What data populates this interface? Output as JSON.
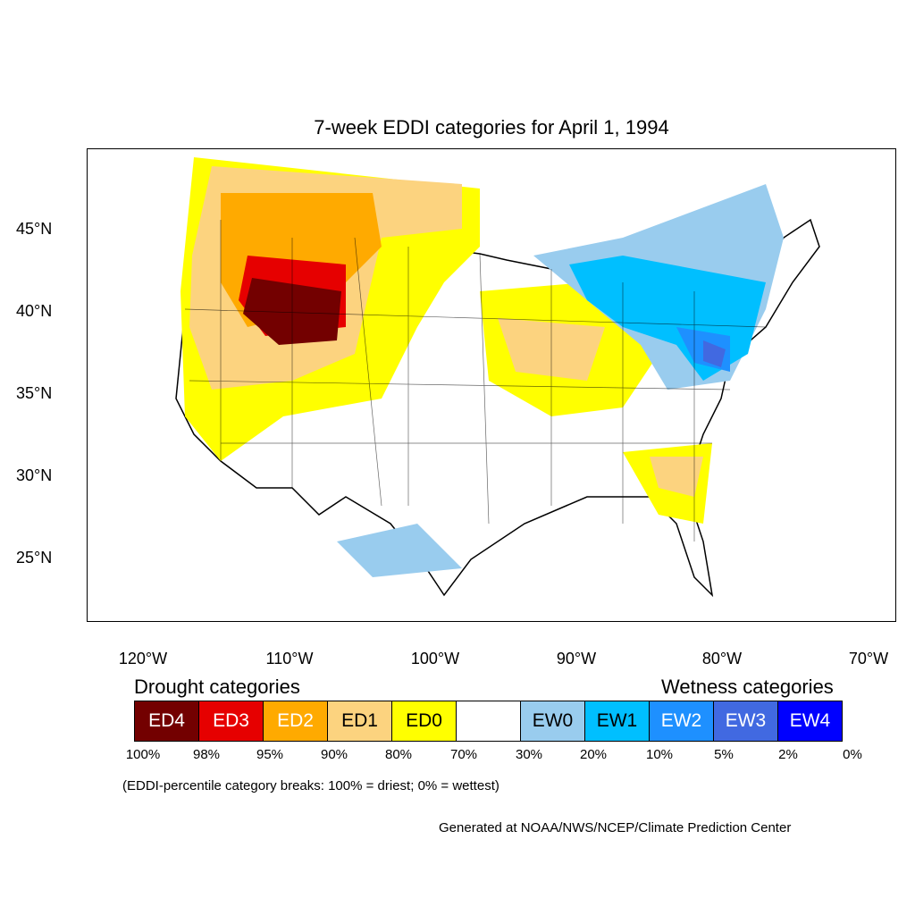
{
  "title": "7-week EDDI categories for April 1, 1994",
  "map": {
    "lat_labels": [
      "45°N",
      "40°N",
      "35°N",
      "30°N",
      "25°N"
    ],
    "lon_labels": [
      "120°W",
      "110°W",
      "100°W",
      "90°W",
      "80°W",
      "70°W"
    ]
  },
  "legend": {
    "drought_heading": "Drought categories",
    "wetness_heading": "Wetness categories",
    "categories": [
      {
        "label": "ED4",
        "color": "#730000",
        "text_color": "#ffffff"
      },
      {
        "label": "ED3",
        "color": "#e60000",
        "text_color": "#ffffff"
      },
      {
        "label": "ED2",
        "color": "#ffaa00",
        "text_color": "#ffffff"
      },
      {
        "label": "ED1",
        "color": "#fcd37f",
        "text_color": "#000000"
      },
      {
        "label": "ED0",
        "color": "#ffff00",
        "text_color": "#000000"
      },
      {
        "label": "",
        "color": "#ffffff",
        "text_color": "#000000"
      },
      {
        "label": "EW0",
        "color": "#99ccee",
        "text_color": "#000000"
      },
      {
        "label": "EW1",
        "color": "#00bfff",
        "text_color": "#000000"
      },
      {
        "label": "EW2",
        "color": "#1e90ff",
        "text_color": "#ffffff"
      },
      {
        "label": "EW3",
        "color": "#4169e1",
        "text_color": "#ffffff"
      },
      {
        "label": "EW4",
        "color": "#0000ff",
        "text_color": "#ffffff"
      }
    ],
    "percentiles": [
      "100%",
      "98%",
      "95%",
      "90%",
      "80%",
      "70%",
      "30%",
      "20%",
      "10%",
      "5%",
      "2%",
      "0%"
    ]
  },
  "note": "(EDDI-percentile category breaks: 100% = driest; 0% = wettest)",
  "credit": "Generated at NOAA/NWS/NCEP/Climate Prediction Center"
}
